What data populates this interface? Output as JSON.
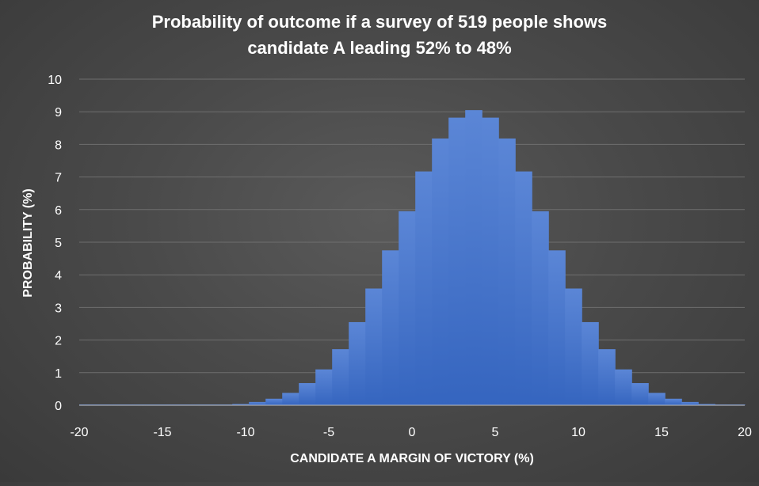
{
  "chart_data": {
    "type": "bar",
    "title_line1": "Probability of outcome if a survey of 519 people shows",
    "title_line2": "candidate A leading 52% to 48%",
    "xlabel": "CANDIDATE A MARGIN OF VICTORY (%)",
    "ylabel": "PROBABILITY (%)",
    "xlim": [
      -20,
      20
    ],
    "ylim": [
      0,
      10
    ],
    "grid": true,
    "legend": "none",
    "bar_color": "#4472C4",
    "x_ticks": [
      "-20",
      "-15",
      "-10",
      "-5",
      "0",
      "5",
      "10",
      "15",
      "20"
    ],
    "y_ticks": [
      "0",
      "1",
      "2",
      "3",
      "4",
      "5",
      "6",
      "7",
      "8",
      "9",
      "10"
    ],
    "x": [
      -20.3,
      -19.3,
      -18.3,
      -17.3,
      -16.3,
      -15.3,
      -14.3,
      -13.3,
      -12.3,
      -11.3,
      -10.3,
      -9.3,
      -8.3,
      -7.3,
      -6.3,
      -5.3,
      -4.3,
      -3.3,
      -2.3,
      -1.3,
      -0.3,
      0.7,
      1.7,
      2.7,
      3.7,
      4.7,
      5.7,
      6.7,
      7.7,
      8.7,
      9.7,
      10.7,
      11.7,
      12.7,
      13.7,
      14.7,
      15.7,
      16.7,
      17.7,
      18.7,
      19.7
    ],
    "values": [
      0.0,
      0.0,
      0.0,
      0.0,
      0.0,
      0.0,
      0.0,
      0.0,
      0.0,
      0.0,
      0.04,
      0.1,
      0.2,
      0.38,
      0.68,
      1.1,
      1.72,
      2.55,
      3.58,
      4.75,
      5.95,
      7.17,
      8.18,
      8.82,
      9.05,
      8.82,
      8.18,
      7.17,
      5.95,
      4.75,
      3.58,
      2.55,
      1.72,
      1.1,
      0.68,
      0.38,
      0.2,
      0.1,
      0.04,
      0.0,
      0.0
    ]
  }
}
